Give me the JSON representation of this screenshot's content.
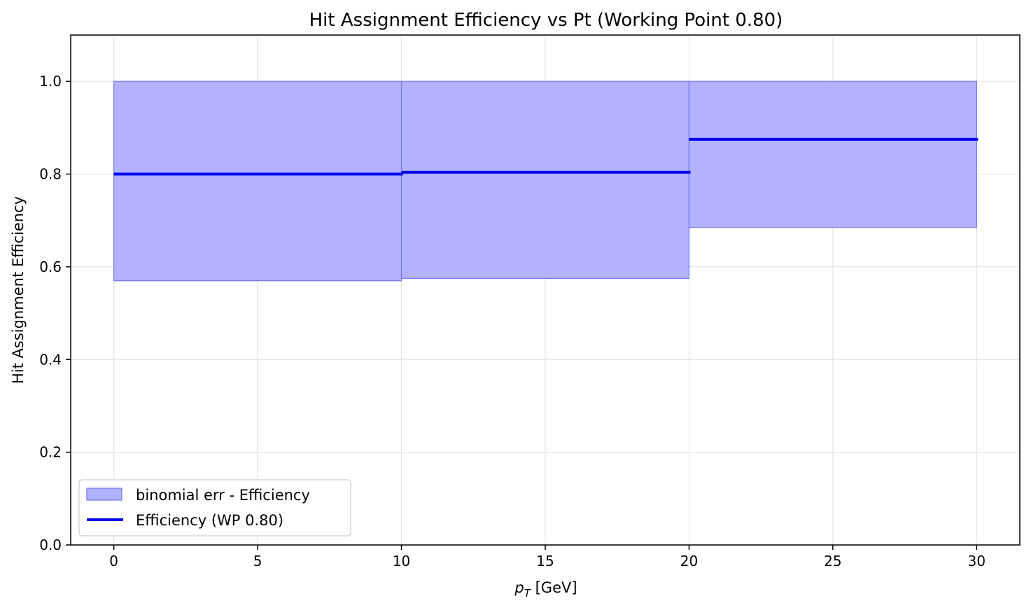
{
  "chart_data": {
    "type": "bar",
    "title": "Hit Assignment Efficiency vs Pt (Working Point 0.80)",
    "xlabel": {
      "symbol": "p",
      "subscript": "T",
      "unit": " [GeV]"
    },
    "ylabel": "Hit Assignment Efficiency",
    "xlim": [
      -1.5,
      31.5
    ],
    "ylim": [
      0,
      1.1
    ],
    "xticks": [
      0,
      5,
      10,
      15,
      20,
      25,
      30
    ],
    "yticks": [
      0.0,
      0.2,
      0.4,
      0.6,
      0.8,
      1.0
    ],
    "ytick_labels": [
      "0.0",
      "0.2",
      "0.4",
      "0.6",
      "0.8",
      "1.0"
    ],
    "grid": true,
    "legend_position": "lower-left",
    "bins": [
      {
        "x_low": 0,
        "x_high": 10,
        "efficiency": 0.8,
        "err_low": 0.57,
        "err_high": 1.0
      },
      {
        "x_low": 10,
        "x_high": 20,
        "efficiency": 0.804,
        "err_low": 0.575,
        "err_high": 1.0
      },
      {
        "x_low": 20,
        "x_high": 30,
        "efficiency": 0.875,
        "err_low": 0.685,
        "err_high": 1.0
      }
    ],
    "series": [
      {
        "name": "binomial err - Efficiency",
        "kind": "band",
        "color": "#b2b2ff",
        "edge_color": "#7373f0"
      },
      {
        "name": "Efficiency (WP 0.80)",
        "kind": "step-line",
        "color": "#0000ee"
      }
    ]
  }
}
